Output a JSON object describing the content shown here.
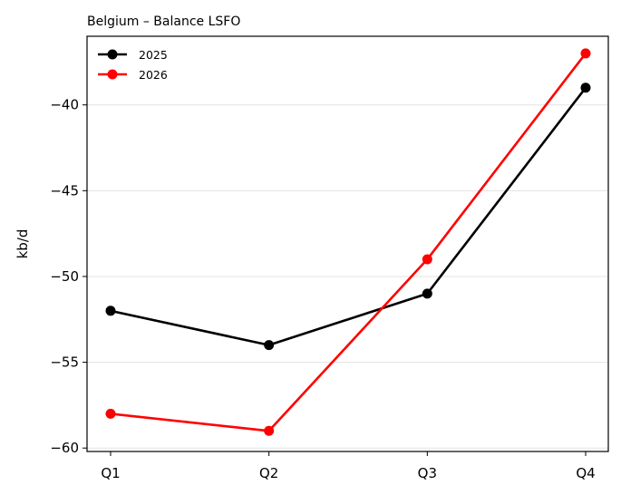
{
  "chart_data": {
    "type": "line",
    "title": "Belgium – Balance LSFO",
    "xlabel": "",
    "ylabel": "kb/d",
    "categories": [
      "Q1",
      "Q2",
      "Q3",
      "Q4"
    ],
    "series": [
      {
        "name": "2025",
        "values": [
          -52,
          -54,
          -51,
          -39
        ],
        "color": "#000000"
      },
      {
        "name": "2026",
        "values": [
          -58,
          -59,
          -49,
          -37
        ],
        "color": "#ff0000"
      }
    ],
    "ylim": [
      -60.2,
      -36
    ],
    "yticks": [
      -60,
      -55,
      -50,
      -45,
      -40
    ],
    "ytick_labels": [
      "−60",
      "−55",
      "−50",
      "−45",
      "−40"
    ],
    "grid": "horizontal",
    "legend_position": "top-left"
  }
}
